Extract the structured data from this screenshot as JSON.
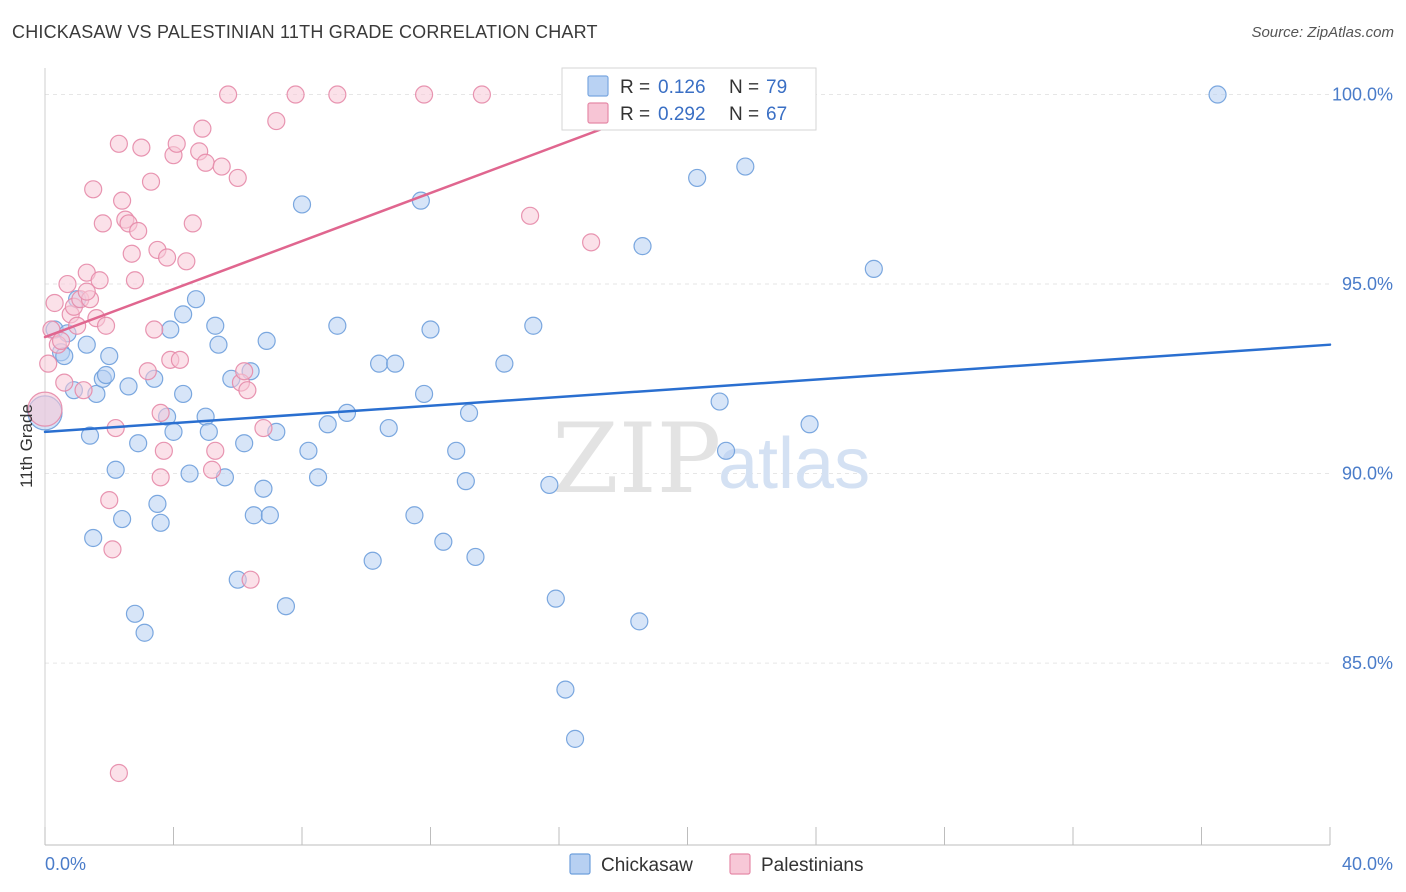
{
  "header": {
    "title": "CHICKASAW VS PALESTINIAN 11TH GRADE CORRELATION CHART",
    "source": "Source: ZipAtlas.com"
  },
  "watermark": {
    "zip": "ZIP",
    "atlas": "atlas"
  },
  "legend": {
    "r_label": "R =",
    "n_label": "N =",
    "rows": [
      {
        "r": "0.126",
        "n": "79",
        "color": "#7aa7e0",
        "fill": "#b9d2f3"
      },
      {
        "r": "0.292",
        "n": "67",
        "color": "#e58aa8",
        "fill": "#f7c5d5"
      }
    ]
  },
  "chart_data": {
    "type": "scatter",
    "title": "CHICKASAW VS PALESTINIAN 11TH GRADE CORRELATION CHART",
    "xlabel": "",
    "ylabel": "11th Grade",
    "xlim": [
      0,
      40
    ],
    "ylim": [
      80.2,
      100.7
    ],
    "x_tick_labels": [
      "0.0%",
      "40.0%"
    ],
    "y_ticks": [
      85,
      90,
      95,
      100
    ],
    "y_tick_labels": [
      "85.0%",
      "90.0%",
      "95.0%",
      "100.0%"
    ],
    "grid": true,
    "series": [
      {
        "name": "Chickasaw",
        "color": "#6e9fdc",
        "fill": "#b7d0f2",
        "line_color": "#2a6fd0",
        "trend": {
          "x0": 0,
          "y0": 91.1,
          "x1": 40,
          "y1": 93.4
        },
        "points": [
          [
            0.3,
            93.8
          ],
          [
            0.5,
            93.2
          ],
          [
            0.6,
            93.1
          ],
          [
            0.7,
            93.7
          ],
          [
            0.9,
            92.2
          ],
          [
            1.0,
            94.6
          ],
          [
            1.3,
            93.4
          ],
          [
            1.4,
            91.0
          ],
          [
            1.5,
            88.3
          ],
          [
            1.6,
            92.1
          ],
          [
            1.8,
            92.5
          ],
          [
            1.9,
            92.6
          ],
          [
            2.0,
            93.1
          ],
          [
            2.2,
            90.1
          ],
          [
            2.4,
            88.8
          ],
          [
            2.6,
            92.3
          ],
          [
            2.8,
            86.3
          ],
          [
            2.9,
            90.8
          ],
          [
            3.1,
            85.8
          ],
          [
            3.4,
            92.5
          ],
          [
            3.6,
            88.7
          ],
          [
            3.8,
            91.5
          ],
          [
            3.9,
            93.8
          ],
          [
            4.0,
            91.1
          ],
          [
            4.3,
            94.2
          ],
          [
            4.3,
            92.1
          ],
          [
            4.5,
            90.0
          ],
          [
            4.7,
            94.6
          ],
          [
            5.0,
            91.5
          ],
          [
            5.1,
            91.1
          ],
          [
            5.3,
            93.9
          ],
          [
            5.4,
            93.4
          ],
          [
            5.6,
            89.9
          ],
          [
            5.8,
            92.5
          ],
          [
            6.0,
            87.2
          ],
          [
            6.2,
            90.8
          ],
          [
            6.4,
            92.7
          ],
          [
            6.5,
            88.9
          ],
          [
            6.8,
            89.6
          ],
          [
            6.9,
            93.5
          ],
          [
            7.2,
            91.1
          ],
          [
            7.5,
            86.5
          ],
          [
            8.0,
            97.1
          ],
          [
            8.2,
            90.6
          ],
          [
            8.5,
            89.9
          ],
          [
            8.8,
            91.3
          ],
          [
            9.1,
            93.9
          ],
          [
            9.4,
            91.6
          ],
          [
            10.2,
            87.7
          ],
          [
            10.4,
            92.9
          ],
          [
            10.7,
            91.2
          ],
          [
            10.9,
            92.9
          ],
          [
            11.5,
            88.9
          ],
          [
            11.7,
            97.2
          ],
          [
            11.8,
            92.1
          ],
          [
            12.0,
            93.8
          ],
          [
            12.4,
            88.2
          ],
          [
            13.1,
            89.8
          ],
          [
            13.2,
            91.6
          ],
          [
            13.4,
            87.8
          ],
          [
            14.3,
            92.9
          ],
          [
            15.2,
            93.9
          ],
          [
            15.7,
            89.7
          ],
          [
            15.9,
            86.7
          ],
          [
            16.2,
            84.3
          ],
          [
            16.5,
            83.0
          ],
          [
            18.5,
            86.1
          ],
          [
            18.6,
            96.0
          ],
          [
            20.3,
            97.8
          ],
          [
            21.0,
            91.9
          ],
          [
            21.2,
            90.6
          ],
          [
            21.8,
            98.1
          ],
          [
            23.8,
            91.3
          ],
          [
            25.8,
            95.4
          ],
          [
            36.5,
            100.0
          ],
          [
            0.0,
            91.6
          ],
          [
            3.5,
            89.2
          ],
          [
            12.8,
            90.6
          ],
          [
            7.0,
            88.9
          ]
        ]
      },
      {
        "name": "Palestinians",
        "color": "#e58aa8",
        "fill": "#f7c8d7",
        "line_color": "#e0668f",
        "trend": {
          "x0": 0,
          "y0": 93.6,
          "x1": 20.2,
          "y1": 100.0
        },
        "points": [
          [
            0.1,
            92.9
          ],
          [
            0.2,
            93.8
          ],
          [
            0.3,
            94.5
          ],
          [
            0.4,
            93.4
          ],
          [
            0.6,
            92.4
          ],
          [
            0.7,
            95.0
          ],
          [
            0.8,
            94.2
          ],
          [
            0.9,
            94.4
          ],
          [
            1.0,
            93.9
          ],
          [
            1.1,
            94.6
          ],
          [
            1.2,
            92.2
          ],
          [
            1.3,
            95.3
          ],
          [
            1.4,
            94.6
          ],
          [
            1.5,
            97.5
          ],
          [
            1.6,
            94.1
          ],
          [
            1.7,
            95.1
          ],
          [
            1.8,
            96.6
          ],
          [
            1.9,
            93.9
          ],
          [
            2.0,
            89.3
          ],
          [
            2.1,
            88.0
          ],
          [
            2.2,
            91.2
          ],
          [
            2.3,
            82.1
          ],
          [
            2.3,
            98.7
          ],
          [
            2.4,
            97.2
          ],
          [
            2.5,
            96.7
          ],
          [
            2.6,
            96.6
          ],
          [
            2.7,
            95.8
          ],
          [
            2.8,
            95.1
          ],
          [
            2.9,
            96.4
          ],
          [
            3.0,
            98.6
          ],
          [
            3.2,
            92.7
          ],
          [
            3.3,
            97.7
          ],
          [
            3.4,
            93.8
          ],
          [
            3.5,
            95.9
          ],
          [
            3.6,
            91.6
          ],
          [
            3.6,
            89.9
          ],
          [
            3.7,
            90.6
          ],
          [
            3.8,
            95.7
          ],
          [
            3.9,
            93.0
          ],
          [
            4.0,
            98.4
          ],
          [
            4.1,
            98.7
          ],
          [
            4.2,
            93.0
          ],
          [
            4.4,
            95.6
          ],
          [
            4.6,
            96.6
          ],
          [
            4.8,
            98.5
          ],
          [
            4.9,
            99.1
          ],
          [
            5.0,
            98.2
          ],
          [
            5.2,
            90.1
          ],
          [
            5.3,
            90.6
          ],
          [
            5.5,
            98.1
          ],
          [
            5.7,
            100.0
          ],
          [
            6.0,
            97.8
          ],
          [
            6.1,
            92.4
          ],
          [
            6.2,
            92.7
          ],
          [
            6.3,
            92.2
          ],
          [
            6.4,
            87.2
          ],
          [
            6.8,
            91.2
          ],
          [
            7.2,
            99.3
          ],
          [
            7.8,
            100.0
          ],
          [
            9.1,
            100.0
          ],
          [
            11.8,
            100.0
          ],
          [
            13.6,
            100.0
          ],
          [
            15.1,
            96.8
          ],
          [
            17.0,
            96.1
          ],
          [
            0.0,
            91.7
          ],
          [
            0.5,
            93.5
          ],
          [
            1.3,
            94.8
          ]
        ]
      }
    ]
  }
}
